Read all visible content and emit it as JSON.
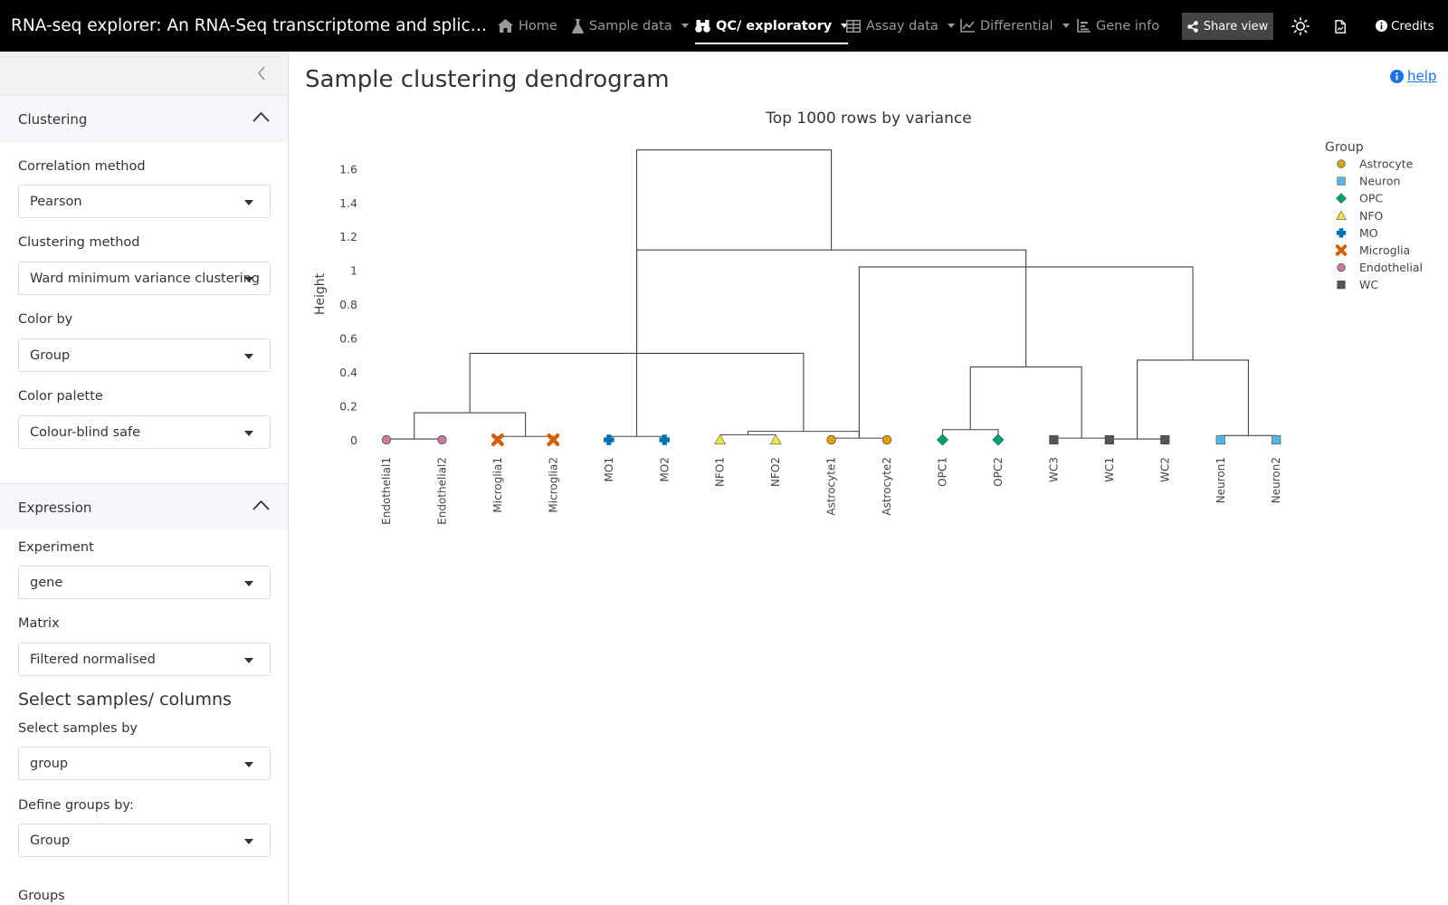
{
  "app": {
    "title": "RNA-seq explorer: An RNA-Seq transcriptome and splicing d…"
  },
  "nav": {
    "home": "Home",
    "sample_data": "Sample data",
    "qc": "QC/ exploratory",
    "assay_data": "Assay data",
    "differential": "Differential",
    "gene_info": "Gene info",
    "share": "Share view",
    "credits": "Credits"
  },
  "sidebar": {
    "clustering": {
      "title": "Clustering",
      "correlation_label": "Correlation method",
      "correlation_value": "Pearson",
      "clustering_label": "Clustering method",
      "clustering_value": "Ward minimum variance clustering",
      "colorby_label": "Color by",
      "colorby_value": "Group",
      "palette_label": "Color palette",
      "palette_value": "Colour-blind safe"
    },
    "expression": {
      "title": "Expression",
      "experiment_label": "Experiment",
      "experiment_value": "gene",
      "matrix_label": "Matrix",
      "matrix_value": "Filtered normalised",
      "select_heading": "Select samples/ columns",
      "selectby_label": "Select samples by",
      "selectby_value": "group",
      "define_label": "Define groups by:",
      "define_value": "Group",
      "groups_label": "Groups"
    }
  },
  "main": {
    "title": "Sample clustering dendrogram",
    "help": "help"
  },
  "chart_data": {
    "type": "dendrogram",
    "title": "Top 1000 rows by variance",
    "ylabel": "Height",
    "ylim": [
      0,
      1.7
    ],
    "yticks": [
      "0",
      "0.2",
      "0.4",
      "0.6",
      "0.8",
      "1",
      "1.2",
      "1.4",
      "1.6"
    ],
    "legend_title": "Group",
    "legend_position": "top-right",
    "groups": [
      {
        "name": "Astrocyte",
        "color": "#E69F00",
        "shape": "circle"
      },
      {
        "name": "Neuron",
        "color": "#56B4E9",
        "shape": "square"
      },
      {
        "name": "OPC",
        "color": "#009E73",
        "shape": "diamond"
      },
      {
        "name": "NFO",
        "color": "#F0E442",
        "shape": "triangle"
      },
      {
        "name": "MO",
        "color": "#0072B2",
        "shape": "plus"
      },
      {
        "name": "Microglia",
        "color": "#D55E00",
        "shape": "cross"
      },
      {
        "name": "Endothelial",
        "color": "#CC79A7",
        "shape": "circle"
      },
      {
        "name": "WC",
        "color": "#555555",
        "shape": "square"
      }
    ],
    "leaves": [
      {
        "label": "Endothelial1",
        "group": "Endothelial"
      },
      {
        "label": "Endothelial2",
        "group": "Endothelial"
      },
      {
        "label": "Microglia1",
        "group": "Microglia"
      },
      {
        "label": "Microglia2",
        "group": "Microglia"
      },
      {
        "label": "MO1",
        "group": "MO"
      },
      {
        "label": "MO2",
        "group": "MO"
      },
      {
        "label": "NFO1",
        "group": "NFO"
      },
      {
        "label": "NFO2",
        "group": "NFO"
      },
      {
        "label": "Astrocyte1",
        "group": "Astrocyte"
      },
      {
        "label": "Astrocyte2",
        "group": "Astrocyte"
      },
      {
        "label": "OPC1",
        "group": "OPC"
      },
      {
        "label": "OPC2",
        "group": "OPC"
      },
      {
        "label": "WC3",
        "group": "WC"
      },
      {
        "label": "WC1",
        "group": "WC"
      },
      {
        "label": "WC2",
        "group": "WC"
      },
      {
        "label": "Neuron1",
        "group": "Neuron"
      },
      {
        "label": "Neuron2",
        "group": "Neuron"
      }
    ],
    "merges": [
      {
        "left": 0,
        "right": 1,
        "height": 0.005
      },
      {
        "left": 2,
        "right": 3,
        "height": 0.02
      },
      {
        "left": 4,
        "right": 5,
        "height": 0.02
      },
      {
        "left": 6,
        "right": 7,
        "height": 0.03
      },
      {
        "left": 8,
        "right": 9,
        "height": 0.01
      },
      {
        "left": 10,
        "right": 11,
        "height": 0.06
      },
      {
        "left": 12,
        "right": 13,
        "height": 0.01
      },
      {
        "left": 13,
        "right": 14,
        "height": 0.005
      },
      {
        "left": 15,
        "right": 16,
        "height": 0.025
      },
      {
        "left": 20,
        "right": 21,
        "height": 0.05
      },
      {
        "left": 17,
        "right": 18,
        "height": 0.16
      },
      {
        "left": 22,
        "right": 23,
        "height": 0.43
      },
      {
        "left": 24,
        "right": 25,
        "height": 0.47
      },
      {
        "left": 26,
        "right": 27,
        "height": 0.51
      },
      {
        "left": 19,
        "right": 28,
        "height": 1.12
      },
      {
        "left": 21,
        "right": 29,
        "height": 1.02
      },
      {
        "left": 30,
        "right": 31,
        "height": 1.71
      }
    ]
  }
}
